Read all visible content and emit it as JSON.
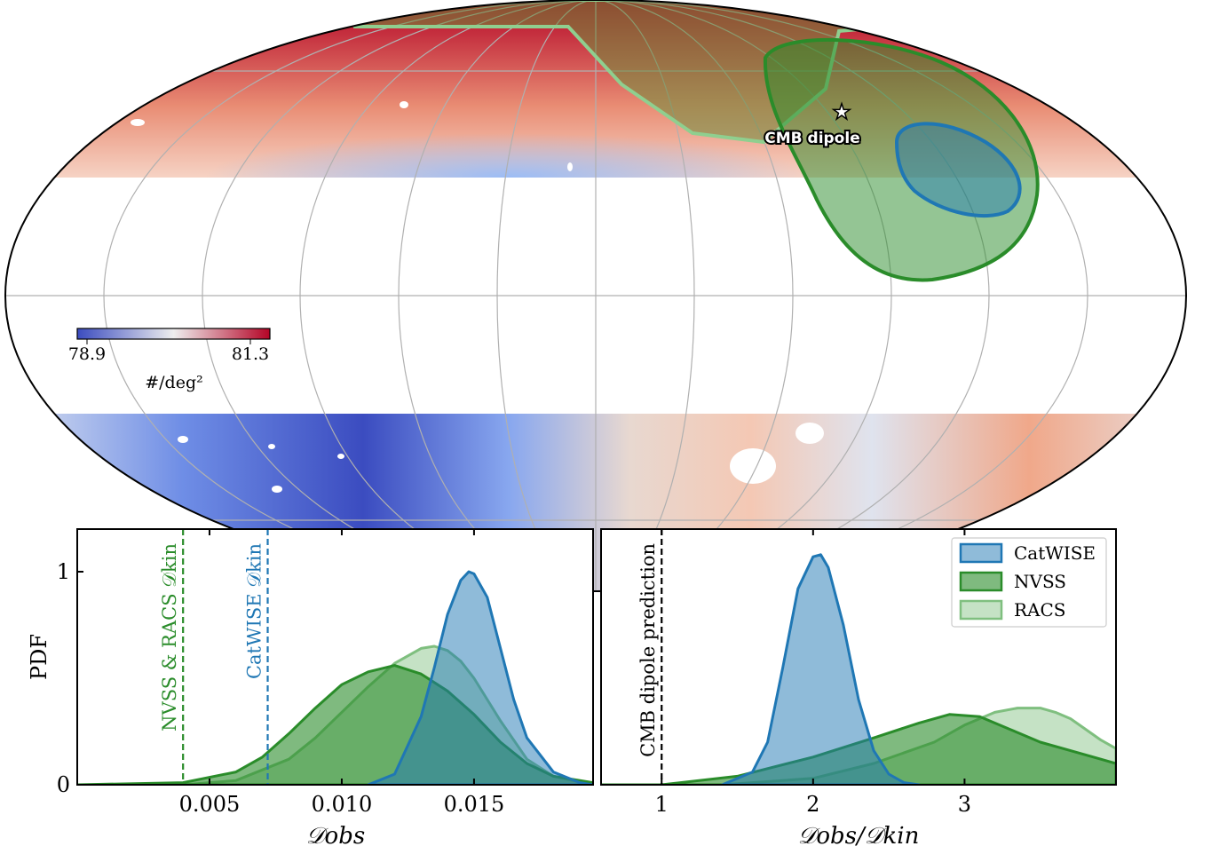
{
  "colors": {
    "catwise": "#1f77b4",
    "nvss": "#2a8c2a",
    "racs": "#7fbf7f",
    "cmb_line": "#000000",
    "map_low": "#3b4cc0",
    "map_mid": "#eeeeee",
    "map_high": "#b40426"
  },
  "sky_map": {
    "colorbar_min": "78.9",
    "colorbar_max": "81.3",
    "colorbar_label": "#/deg²",
    "marker_label": "CMB dipole",
    "marker_icon": "star-icon"
  },
  "chart_data": [
    {
      "type": "area",
      "xlabel": "𝒟obs",
      "ylabel": "PDF",
      "xlim": [
        0.0,
        0.0195
      ],
      "ylim": [
        0,
        1.2
      ],
      "x_ticks": [
        "0.005",
        "0.010",
        "0.015"
      ],
      "y_ticks": [
        "0",
        "1"
      ],
      "vlines": [
        {
          "x": 0.004,
          "label": "NVSS & RACS 𝒟kin",
          "color": "#2a8c2a"
        },
        {
          "x": 0.0072,
          "label": "CatWISE 𝒟kin",
          "color": "#1f77b4"
        }
      ],
      "series": [
        {
          "name": "RACS",
          "x": [
            0.004,
            0.006,
            0.008,
            0.009,
            0.01,
            0.011,
            0.012,
            0.013,
            0.0135,
            0.014,
            0.0145,
            0.015,
            0.016,
            0.017,
            0.018,
            0.0195
          ],
          "y": [
            0.0,
            0.02,
            0.12,
            0.22,
            0.34,
            0.46,
            0.57,
            0.64,
            0.65,
            0.63,
            0.58,
            0.5,
            0.3,
            0.12,
            0.04,
            0.0
          ]
        },
        {
          "name": "NVSS",
          "x": [
            0.0,
            0.004,
            0.006,
            0.007,
            0.008,
            0.009,
            0.01,
            0.011,
            0.012,
            0.013,
            0.014,
            0.015,
            0.016,
            0.017,
            0.018,
            0.0195
          ],
          "y": [
            0.0,
            0.01,
            0.06,
            0.13,
            0.24,
            0.36,
            0.47,
            0.53,
            0.56,
            0.52,
            0.44,
            0.33,
            0.2,
            0.1,
            0.04,
            0.01
          ]
        },
        {
          "name": "CatWISE",
          "x": [
            0.011,
            0.012,
            0.013,
            0.0135,
            0.014,
            0.0145,
            0.0148,
            0.015,
            0.0155,
            0.016,
            0.0165,
            0.017,
            0.018,
            0.019,
            0.0195
          ],
          "y": [
            0.0,
            0.05,
            0.32,
            0.55,
            0.8,
            0.96,
            1.0,
            0.99,
            0.88,
            0.64,
            0.4,
            0.22,
            0.06,
            0.01,
            0.0
          ]
        }
      ]
    },
    {
      "type": "area",
      "xlabel": "𝒟obs/𝒟kin",
      "ylabel": "",
      "xlim": [
        0.6,
        4.0
      ],
      "ylim": [
        0,
        1.2
      ],
      "x_ticks": [
        "1",
        "2",
        "3"
      ],
      "y_ticks": [],
      "vlines": [
        {
          "x": 1.0,
          "label": "CMB dipole prediction",
          "color": "#000000"
        }
      ],
      "legend": {
        "position": "top-right",
        "entries": [
          "CatWISE",
          "NVSS",
          "RACS"
        ]
      },
      "series": [
        {
          "name": "RACS",
          "x": [
            1.4,
            2.0,
            2.4,
            2.8,
            3.0,
            3.2,
            3.35,
            3.5,
            3.6,
            3.7,
            3.8,
            3.9,
            4.0
          ],
          "y": [
            0.0,
            0.03,
            0.1,
            0.2,
            0.28,
            0.34,
            0.36,
            0.36,
            0.34,
            0.31,
            0.26,
            0.21,
            0.17
          ]
        },
        {
          "name": "NVSS",
          "x": [
            0.6,
            1.0,
            1.5,
            2.0,
            2.4,
            2.7,
            2.9,
            3.1,
            3.3,
            3.5,
            3.7,
            3.9,
            4.0
          ],
          "y": [
            0.0,
            0.0,
            0.04,
            0.13,
            0.22,
            0.29,
            0.33,
            0.32,
            0.26,
            0.2,
            0.16,
            0.12,
            0.1
          ]
        },
        {
          "name": "CatWISE",
          "x": [
            1.4,
            1.6,
            1.7,
            1.8,
            1.9,
            2.0,
            2.05,
            2.1,
            2.2,
            2.3,
            2.4,
            2.5,
            2.6,
            2.7
          ],
          "y": [
            0.0,
            0.06,
            0.2,
            0.55,
            0.92,
            1.07,
            1.08,
            1.02,
            0.75,
            0.4,
            0.16,
            0.05,
            0.01,
            0.0
          ]
        }
      ]
    }
  ]
}
